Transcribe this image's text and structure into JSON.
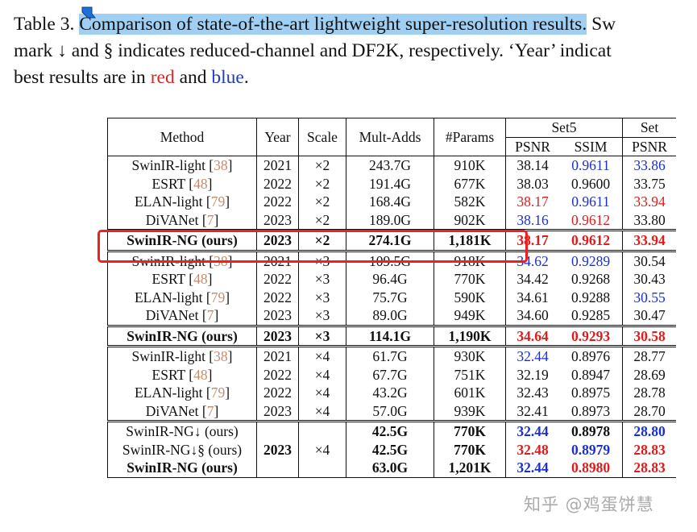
{
  "caption": {
    "line1_prefix": "Table 3. ",
    "line1_highlight": "Comparison of state-of-the-art lightweight super-resolution results.",
    "line1_suffix": " Sw",
    "line2": "mark ↓ and § indicates reduced-channel and DF2K, respectively. ‘Year’ indicat",
    "line3_prefix": "best results are in ",
    "line3_red": "red",
    "line3_mid": " and ",
    "line3_blue": "blue",
    "line3_end": "."
  },
  "table": {
    "headers": {
      "method": "Method",
      "year": "Year",
      "scale": "Scale",
      "mult_adds": "Mult-Adds",
      "params": "#Params",
      "set5": "Set5",
      "set14_partial": "Set",
      "psnr": "PSNR",
      "ssim": "SSIM",
      "psnr2": "PSNR"
    },
    "groups": [
      {
        "rows": [
          {
            "method": "SwinIR-light [",
            "ref": "38",
            "close": "]",
            "year": "2021",
            "scale": "×2",
            "ma": "243.7G",
            "params": "910K",
            "psnr": "38.14",
            "ssim": "0.9611",
            "psnr2": "33.86",
            "psnr_c": "",
            "ssim_c": "bl",
            "psnr2_c": "bl"
          },
          {
            "method": "ESRT [",
            "ref": "48",
            "close": "]",
            "year": "2022",
            "scale": "×2",
            "ma": "191.4G",
            "params": "677K",
            "psnr": "38.03",
            "ssim": "0.9600",
            "psnr2": "33.75",
            "psnr_c": "",
            "ssim_c": "",
            "psnr2_c": ""
          },
          {
            "method": "ELAN-light [",
            "ref": "79",
            "close": "]",
            "year": "2022",
            "scale": "×2",
            "ma": "168.4G",
            "params": "582K",
            "psnr": "38.17",
            "ssim": "0.9611",
            "psnr2": "33.94",
            "psnr_c": "rd",
            "ssim_c": "bl",
            "psnr2_c": "rd"
          },
          {
            "method": "DiVANet [",
            "ref": "7",
            "close": "]",
            "year": "2023",
            "scale": "×2",
            "ma": "189.0G",
            "params": "902K",
            "psnr": "38.16",
            "ssim": "0.9612",
            "psnr2": "33.80",
            "psnr_c": "bl",
            "ssim_c": "rd",
            "psnr2_c": ""
          }
        ]
      },
      {
        "ours": true,
        "rows": [
          {
            "method": "SwinIR-NG (ours)",
            "year": "2023",
            "scale": "×2",
            "ma": "274.1G",
            "params": "1,181K",
            "psnr": "38.17",
            "ssim": "0.9612",
            "psnr2": "33.94",
            "psnr_c": "rd",
            "ssim_c": "rd",
            "psnr2_c": "rd"
          }
        ]
      },
      {
        "rows": [
          {
            "method": "SwinIR-light [",
            "ref": "38",
            "close": "]",
            "year": "2021",
            "scale": "×3",
            "ma": "109.5G",
            "params": "918K",
            "psnr": "34.62",
            "ssim": "0.9289",
            "psnr2": "30.54",
            "psnr_c": "bl",
            "ssim_c": "bl",
            "psnr2_c": ""
          },
          {
            "method": "ESRT [",
            "ref": "48",
            "close": "]",
            "year": "2022",
            "scale": "×3",
            "ma": "96.4G",
            "params": "770K",
            "psnr": "34.42",
            "ssim": "0.9268",
            "psnr2": "30.43",
            "psnr_c": "",
            "ssim_c": "",
            "psnr2_c": ""
          },
          {
            "method": "ELAN-light [",
            "ref": "79",
            "close": "]",
            "year": "2022",
            "scale": "×3",
            "ma": "75.7G",
            "params": "590K",
            "psnr": "34.61",
            "ssim": "0.9288",
            "psnr2": "30.55",
            "psnr_c": "",
            "ssim_c": "",
            "psnr2_c": "bl"
          },
          {
            "method": "DiVANet [",
            "ref": "7",
            "close": "]",
            "year": "2023",
            "scale": "×3",
            "ma": "89.0G",
            "params": "949K",
            "psnr": "34.60",
            "ssim": "0.9285",
            "psnr2": "30.47",
            "psnr_c": "",
            "ssim_c": "",
            "psnr2_c": ""
          }
        ]
      },
      {
        "ours": true,
        "rows": [
          {
            "method": "SwinIR-NG (ours)",
            "year": "2023",
            "scale": "×3",
            "ma": "114.1G",
            "params": "1,190K",
            "psnr": "34.64",
            "ssim": "0.9293",
            "psnr2": "30.58",
            "psnr_c": "rd",
            "ssim_c": "rd",
            "psnr2_c": "rd"
          }
        ]
      },
      {
        "rows": [
          {
            "method": "SwinIR-light [",
            "ref": "38",
            "close": "]",
            "year": "2021",
            "scale": "×4",
            "ma": "61.7G",
            "params": "930K",
            "psnr": "32.44",
            "ssim": "0.8976",
            "psnr2": "28.77",
            "psnr_c": "bl",
            "ssim_c": "",
            "psnr2_c": ""
          },
          {
            "method": "ESRT [",
            "ref": "48",
            "close": "]",
            "year": "2022",
            "scale": "×4",
            "ma": "67.7G",
            "params": "751K",
            "psnr": "32.19",
            "ssim": "0.8947",
            "psnr2": "28.69",
            "psnr_c": "",
            "ssim_c": "",
            "psnr2_c": ""
          },
          {
            "method": "ELAN-light [",
            "ref": "79",
            "close": "]",
            "year": "2022",
            "scale": "×4",
            "ma": "43.2G",
            "params": "601K",
            "psnr": "32.43",
            "ssim": "0.8975",
            "psnr2": "28.78",
            "psnr_c": "",
            "ssim_c": "",
            "psnr2_c": ""
          },
          {
            "method": "DiVANet [",
            "ref": "7",
            "close": "]",
            "year": "2023",
            "scale": "×4",
            "ma": "57.0G",
            "params": "939K",
            "psnr": "32.41",
            "ssim": "0.8973",
            "psnr2": "28.70",
            "psnr_c": "",
            "ssim_c": "",
            "psnr2_c": ""
          }
        ]
      }
    ],
    "last_group": {
      "year": "2023",
      "scale": "×4",
      "rows": [
        {
          "method": "SwinIR-NG↓ (ours)",
          "ma": "42.5G",
          "params": "770K",
          "psnr": "32.44",
          "ssim": "0.8978",
          "psnr2": "28.80",
          "psnr_c": "bl",
          "ssim_c": "",
          "psnr2_c": "bl"
        },
        {
          "method": "SwinIR-NG↓§ (ours)",
          "ma": "42.5G",
          "params": "770K",
          "psnr": "32.48",
          "ssim": "0.8979",
          "psnr2": "28.83",
          "psnr_c": "rd",
          "ssim_c": "bl",
          "psnr2_c": "rd"
        },
        {
          "method": "SwinIR-NG (ours)",
          "ma": "63.0G",
          "params": "1,201K",
          "psnr": "32.44",
          "ssim": "0.8980",
          "psnr2": "28.83",
          "psnr_c": "bl",
          "ssim_c": "rd",
          "psnr2_c": "rd"
        }
      ]
    }
  },
  "watermark": "知乎 @鸡蛋饼慧",
  "colors": {
    "highlight": "#9fd0f4",
    "red": "#e01b1b",
    "blue": "#1a2fd0",
    "box": "#ee2020"
  }
}
